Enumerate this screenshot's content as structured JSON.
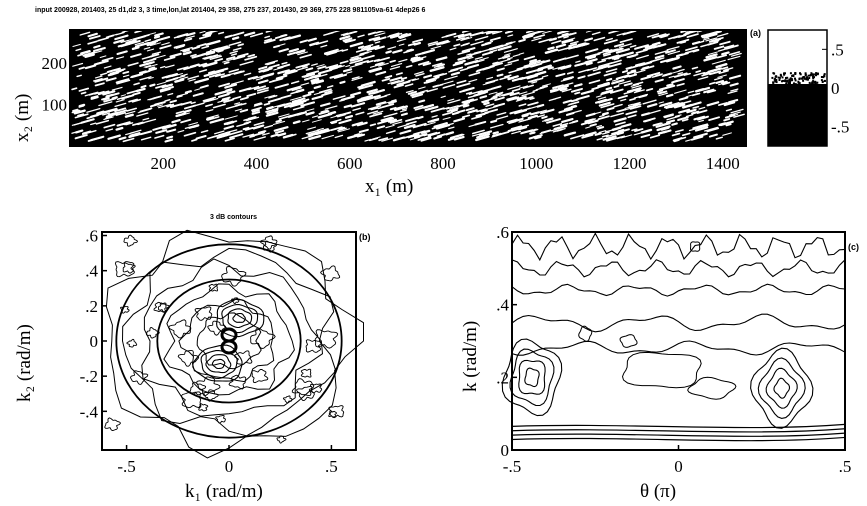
{
  "header_text": "input 200928, 201403, 25 d1,d2 3, 3 time,lon,lat 201404, 29 358, 275 237, 201430, 29 369, 275 228 981105va-61 4dep26 6",
  "chart_data": [
    {
      "type": "heatmap",
      "panel_label": "(a)",
      "xlabel": "x₁ (m)",
      "ylabel": "x₂ (m)",
      "xlim": [
        0,
        1450
      ],
      "ylim": [
        0,
        280
      ],
      "xticks": [
        200,
        400,
        600,
        800,
        1000,
        1200,
        1400
      ],
      "yticks": [
        100,
        200
      ],
      "colorbar": {
        "ticks": [
          0.5,
          0,
          -0.5
        ],
        "range": [
          -0.75,
          0.75
        ]
      },
      "colors": {
        "high": "#ffffff",
        "low": "#000000"
      }
    },
    {
      "type": "contour",
      "panel_label": "(b)",
      "title": "3 dB contours",
      "xlabel": "k₁ (rad/m)",
      "ylabel": "k₂ (rad/m)",
      "xlim": [
        -0.62,
        0.62
      ],
      "ylim": [
        -0.62,
        0.62
      ],
      "xticks": [
        -0.5,
        0,
        0.5
      ],
      "yticks": [
        0.6,
        0.4,
        0.2,
        0,
        -0.2,
        -0.4
      ],
      "reference_circles_radius": [
        0.35,
        0.55
      ]
    },
    {
      "type": "contour",
      "panel_label": "(c)",
      "xlabel": "θ (π)",
      "ylabel": "k (rad/m)",
      "xlim": [
        -0.5,
        0.5
      ],
      "ylim": [
        0,
        0.6
      ],
      "xticks": [
        -0.5,
        0,
        0.5
      ],
      "yticks": [
        0.6,
        0.4,
        0.2,
        0
      ]
    }
  ]
}
